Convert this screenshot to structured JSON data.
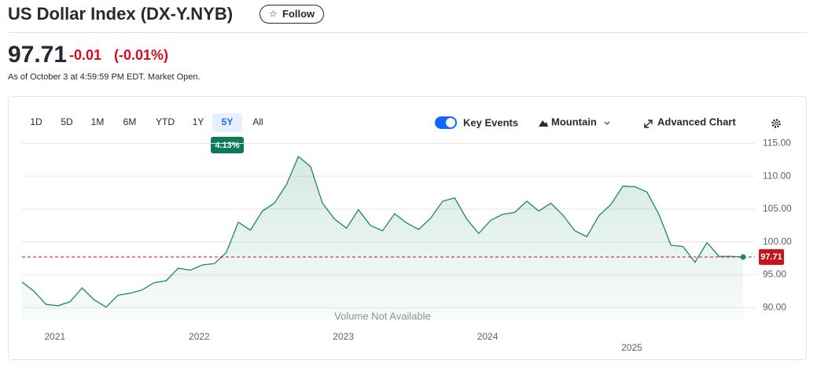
{
  "header": {
    "title": "US Dollar Index (DX-Y.NYB)",
    "follow": "Follow",
    "price": "97.71",
    "change": "-0.01",
    "change_pct": "(-0.01%)",
    "as_of": "As of October 3 at 4:59:59 PM EDT. Market Open."
  },
  "toolbar": {
    "ranges": [
      "1D",
      "5D",
      "1M",
      "6M",
      "YTD",
      "1Y",
      "5Y",
      "All"
    ],
    "selected_return": "4.13%",
    "key_events": "Key Events",
    "chart_style": "Mountain",
    "advanced": "Advanced Chart"
  },
  "chart_data": {
    "type": "area",
    "categories": [
      null,
      null,
      null,
      "2021",
      null,
      null,
      null,
      null,
      null,
      null,
      null,
      null,
      null,
      null,
      null,
      "2022",
      null,
      null,
      null,
      null,
      null,
      null,
      null,
      null,
      null,
      null,
      null,
      "2023",
      null,
      null,
      null,
      null,
      null,
      null,
      null,
      null,
      null,
      null,
      null,
      "2024",
      null,
      null,
      null,
      null,
      null,
      null,
      null,
      null,
      null,
      null,
      null,
      "2025",
      null,
      null,
      null,
      null,
      null,
      null,
      null,
      null,
      null
    ],
    "values": [
      93.9,
      92.5,
      90.5,
      90.3,
      90.9,
      93.0,
      91.2,
      90.1,
      91.9,
      92.2,
      92.7,
      93.8,
      94.1,
      96.0,
      95.7,
      96.5,
      96.7,
      98.4,
      103.0,
      101.8,
      104.7,
      105.9,
      108.7,
      113.0,
      111.5,
      105.9,
      103.5,
      102.1,
      104.9,
      102.5,
      101.7,
      104.3,
      102.9,
      101.9,
      103.6,
      106.2,
      106.7,
      103.5,
      101.3,
      103.3,
      104.2,
      104.5,
      106.2,
      104.7,
      105.9,
      104.1,
      101.7,
      100.8,
      104.0,
      105.7,
      108.5,
      108.4,
      107.6,
      104.2,
      99.5,
      99.3,
      96.9,
      99.9,
      97.8,
      97.8,
      97.71
    ],
    "color": "#1a8a5a",
    "ylim": [
      88,
      116
    ],
    "yticks": [
      {
        "value": 90,
        "label": "90.00"
      },
      {
        "value": 95,
        "label": "95.00"
      },
      {
        "value": 100,
        "label": "100.00"
      },
      {
        "value": 105,
        "label": "105.00"
      },
      {
        "value": 110,
        "label": "110.00"
      },
      {
        "value": 115,
        "label": "115.00"
      }
    ],
    "grid": true,
    "reference": {
      "value": 97.71,
      "color": "#c4161c"
    },
    "annotation": "Volume Not Available"
  }
}
